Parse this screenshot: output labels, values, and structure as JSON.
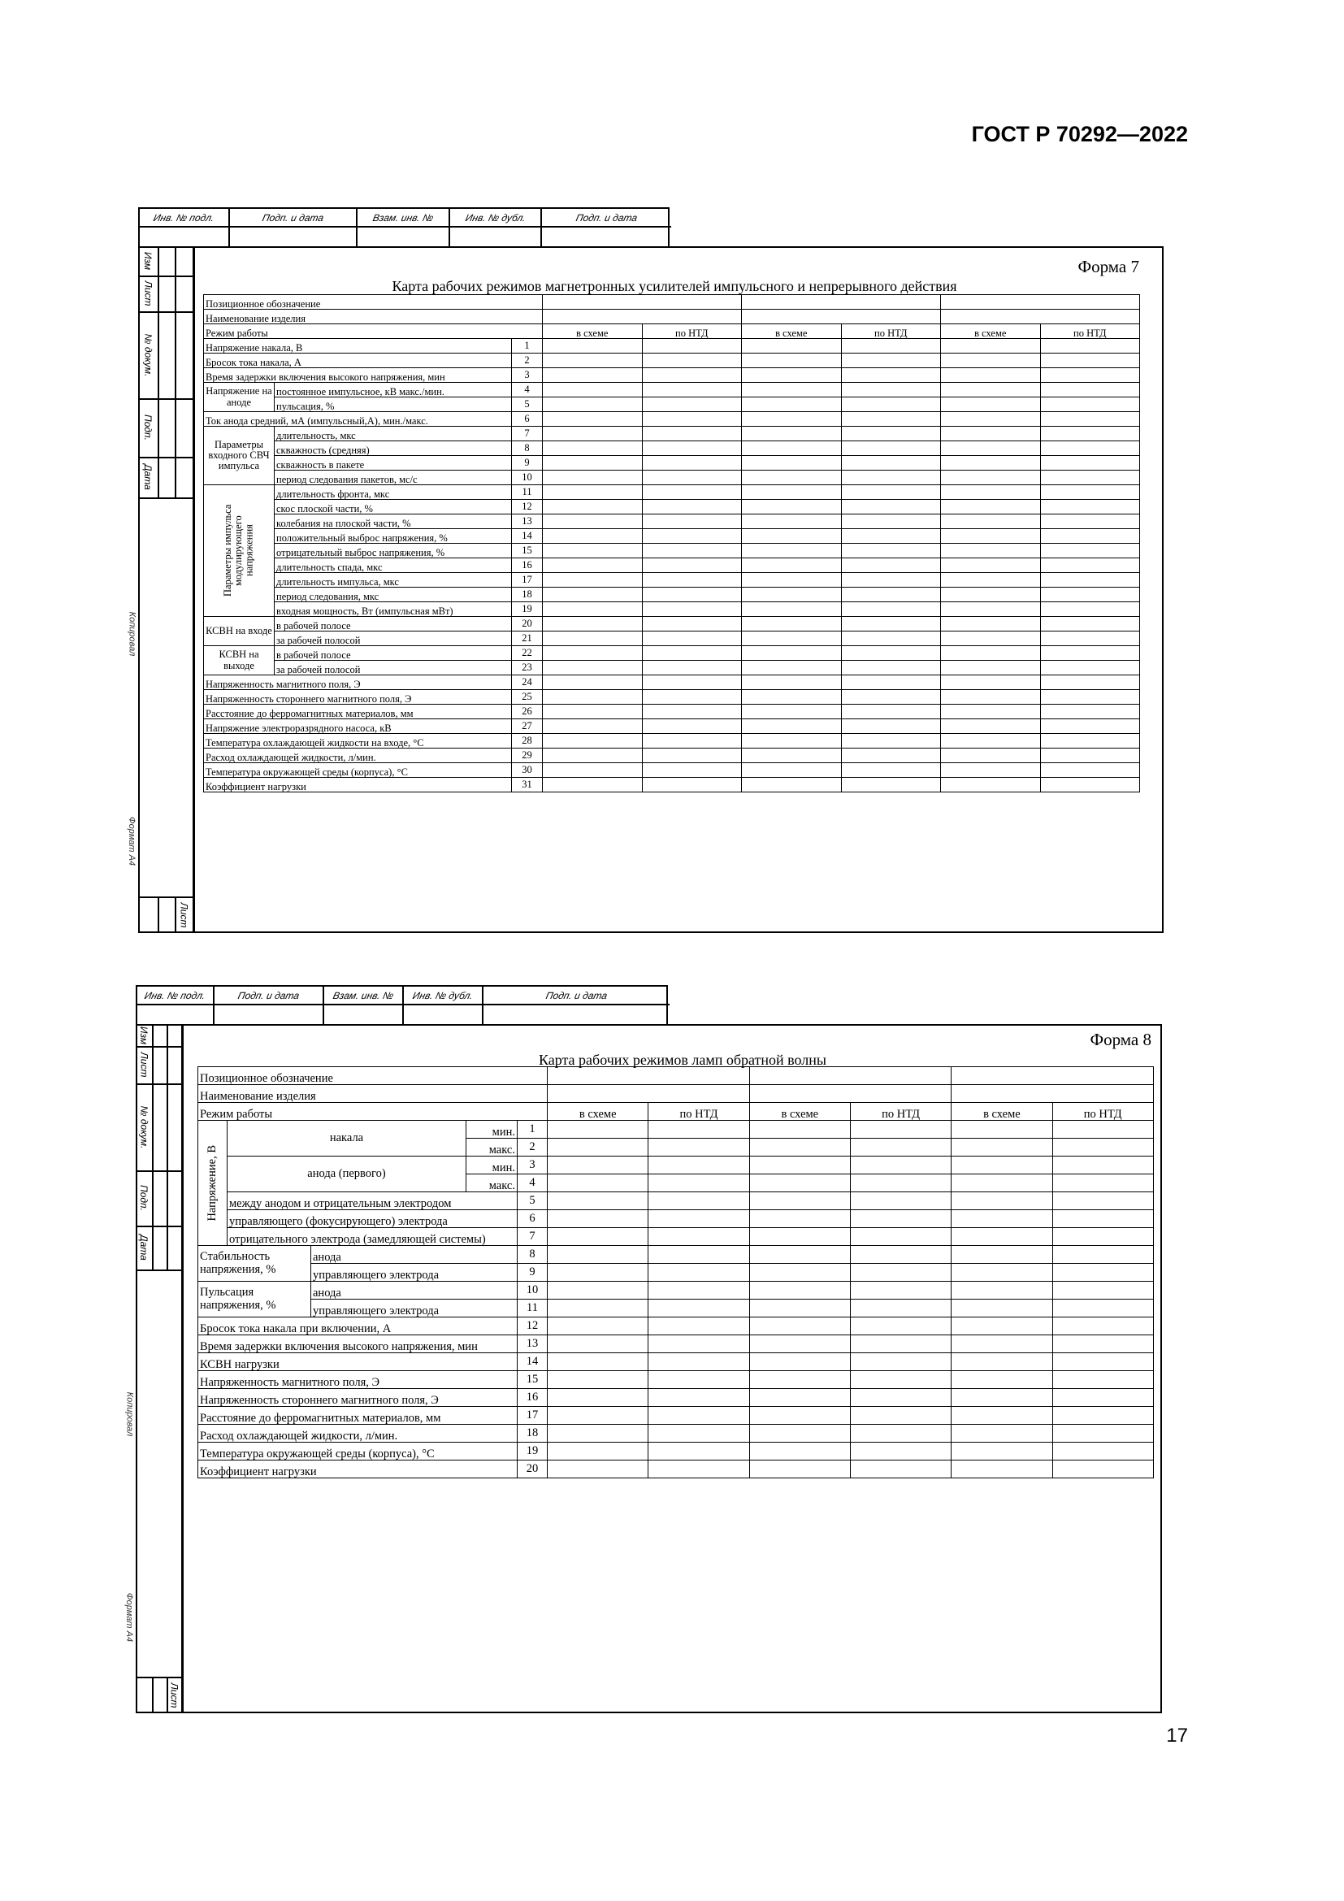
{
  "header": {
    "standard": "ГОСТ Р 70292—2022",
    "page_number": "17"
  },
  "frame": {
    "stamp_labels": [
      "Инв. № подл.",
      "Подп. и дата",
      "Взам. инв. №",
      "Инв. № дубл.",
      "Подп. и дата"
    ],
    "side_labels": [
      "Изм",
      "Лист",
      "№ докум.",
      "Подп.",
      "Дата"
    ],
    "sheet_label": "Лист",
    "copied_label": "Копировал",
    "format_label": "Формат А4"
  },
  "form7": {
    "form_label": "Форма 7",
    "title": "Карта рабочих режимов магнетронных усилителей импульсного и непрерывного действия",
    "head_rows": [
      "Позиционное обозначение",
      "Наименование изделия",
      "Режим работы"
    ],
    "mode_columns": [
      "в схеме",
      "по НТД",
      "в схеме",
      "по НТД",
      "в схеме",
      "по НТД"
    ],
    "rows": [
      {
        "n": "1",
        "label": "Напряжение накала, В"
      },
      {
        "n": "2",
        "label": "Бросок тока накала, А"
      },
      {
        "n": "3",
        "label": "Время задержки включения высокого напряжения, мин"
      },
      {
        "n": "4",
        "group": "Напряжение на аноде",
        "span": 2,
        "label": "постоянное импульсное, кВ макс./мин."
      },
      {
        "n": "5",
        "label": "пульсация, %"
      },
      {
        "n": "6",
        "label": "Ток анода средний, мА (импульсный,А), мин./макс."
      },
      {
        "n": "7",
        "group": "Параметры входного СВЧ импульса",
        "span": 4,
        "label": "длительность, мкс"
      },
      {
        "n": "8",
        "label": "скважность (средняя)"
      },
      {
        "n": "9",
        "label": "скважность в пакете"
      },
      {
        "n": "10",
        "label": "период следования пакетов, мс/с"
      },
      {
        "n": "11",
        "group": "Параметры импульса модулирующего напряжения",
        "span": 9,
        "vertical": true,
        "label": "длительность фронта, мкс"
      },
      {
        "n": "12",
        "label": "скос плоской части, %"
      },
      {
        "n": "13",
        "label": "колебания на плоской части, %"
      },
      {
        "n": "14",
        "label": "положительный выброс напряжения, %"
      },
      {
        "n": "15",
        "label": "отрицательный выброс напряжения, %"
      },
      {
        "n": "16",
        "label": "длительность спада, мкс"
      },
      {
        "n": "17",
        "label": "длительность импульса, мкс"
      },
      {
        "n": "18",
        "label": "период следования, мкс"
      },
      {
        "n": "19",
        "label": "входная мощность, Вт (импульсная мВт)"
      },
      {
        "n": "20",
        "group": "КСВН на входе",
        "span": 2,
        "label": "в рабочей полосе"
      },
      {
        "n": "21",
        "label": "за рабочей полосой"
      },
      {
        "n": "22",
        "group": "КСВН на выходе",
        "span": 2,
        "label": "в рабочей полосе"
      },
      {
        "n": "23",
        "label": "за рабочей полосой"
      },
      {
        "n": "24",
        "label": "Напряженность магнитного поля, Э"
      },
      {
        "n": "25",
        "label": "Напряженность стороннего магнитного поля, Э"
      },
      {
        "n": "26",
        "label": "Расстояние до ферромагнитных материалов, мм"
      },
      {
        "n": "27",
        "label": "Напряжение электроразрядного насоса, кВ"
      },
      {
        "n": "28",
        "label": "Температура  охлаждающей жидкости на входе, °С"
      },
      {
        "n": "29",
        "label": "Расход охлаждающей жидкости, л/мин."
      },
      {
        "n": "30",
        "label": "Температура окружающей среды (корпуса), °С"
      },
      {
        "n": "31",
        "label": "Коэффициент нагрузки"
      }
    ]
  },
  "form8": {
    "form_label": "Форма 8",
    "title": "Карта рабочих режимов ламп обратной волны",
    "head_rows": [
      "Позиционное обозначение",
      "Наименование изделия",
      "Режим работы"
    ],
    "mode_columns": [
      "в схеме",
      "по НТД",
      "в схеме",
      "по НТД",
      "в схеме",
      "по НТД"
    ],
    "rows": [
      {
        "n": "1",
        "g1": "Напряжение, В",
        "g1_span": 7,
        "sub": "накала",
        "mm": "мин."
      },
      {
        "n": "2",
        "mm": "макс."
      },
      {
        "n": "3",
        "sub": "анода (первого)",
        "mm": "мин."
      },
      {
        "n": "4",
        "mm": "макс."
      },
      {
        "n": "5",
        "inner": "между анодом и отрицательным электродом"
      },
      {
        "n": "6",
        "inner": "управляющего (фокусирующего) электрода"
      },
      {
        "n": "7",
        "inner": "отрицательного электрода (замедляющей системы)"
      },
      {
        "n": "8",
        "g2": "Стабильность напряжения, %",
        "lab2": "анода"
      },
      {
        "n": "9",
        "lab2": "управляющего электрода"
      },
      {
        "n": "10",
        "g2": "Пульсация напряжения, %",
        "lab2": "анода"
      },
      {
        "n": "11",
        "lab2": "управляющего электрода"
      },
      {
        "n": "12",
        "full": "Бросок тока накала при включении, А"
      },
      {
        "n": "13",
        "full": "Время задержки включения высокого напряжения, мин"
      },
      {
        "n": "14",
        "full": "КСВН нагрузки"
      },
      {
        "n": "15",
        "full": "Напряженность магнитного поля, Э"
      },
      {
        "n": "16",
        "full": "Напряженность стороннего магнитного поля, Э"
      },
      {
        "n": "17",
        "full": "Расстояние до ферромагнитных материалов, мм"
      },
      {
        "n": "18",
        "full": "Расход охлаждающей жидкости, л/мин."
      },
      {
        "n": "19",
        "full": "Температура окружающей среды (корпуса), °С"
      },
      {
        "n": "20",
        "full": "Коэффициент нагрузки"
      }
    ]
  }
}
